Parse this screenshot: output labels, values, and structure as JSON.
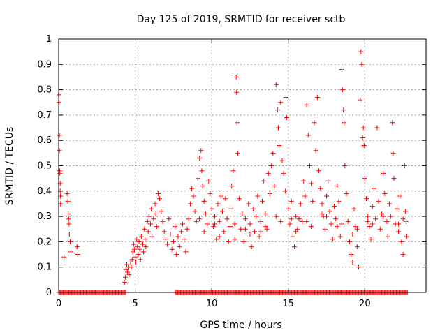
{
  "chart_data": {
    "type": "scatter",
    "title": "Day 125 of 2019, SRMTID for receiver sctb",
    "xlabel": "GPS time / hours",
    "ylabel": "SRMTID / TECUs",
    "xlim": [
      0,
      24
    ],
    "ylim": [
      0,
      1
    ],
    "xticks": [
      0,
      5,
      10,
      15,
      20
    ],
    "xtick_labels": [
      "0",
      "5",
      "10",
      "15",
      "20"
    ],
    "yticks": [
      0,
      0.1,
      0.2,
      0.3,
      0.4,
      0.5,
      0.6,
      0.7,
      0.8,
      0.9,
      1
    ],
    "ytick_labels": [
      "0",
      "0.1",
      "0.2",
      "0.3",
      "0.4",
      "0.5",
      "0.6",
      "0.7",
      "0.8",
      "0.9",
      "1"
    ],
    "grid": true,
    "marker": "+",
    "series": [
      {
        "name": "SRMTID",
        "color": "#ff0000",
        "points": [
          [
            0.02,
            0.78
          ],
          [
            0.03,
            0.75
          ],
          [
            0.05,
            0.62
          ],
          [
            0.05,
            0.56
          ],
          [
            0.07,
            0.48
          ],
          [
            0.08,
            0.47
          ],
          [
            0.1,
            0.43
          ],
          [
            0.1,
            0.4
          ],
          [
            0.12,
            0.38
          ],
          [
            0.12,
            0.35
          ],
          [
            0.35,
            0.14
          ],
          [
            0.55,
            0.39
          ],
          [
            0.6,
            0.36
          ],
          [
            0.62,
            0.31
          ],
          [
            0.65,
            0.29
          ],
          [
            0.68,
            0.27
          ],
          [
            0.7,
            0.23
          ],
          [
            0.75,
            0.2
          ],
          [
            0.8,
            0.16
          ],
          [
            1.2,
            0.18
          ],
          [
            1.25,
            0.15
          ],
          [
            4.3,
            0.04
          ],
          [
            4.35,
            0.06
          ],
          [
            4.4,
            0.09
          ],
          [
            4.45,
            0.11
          ],
          [
            4.5,
            0.08
          ],
          [
            4.55,
            0.1
          ],
          [
            4.6,
            0.07
          ],
          [
            4.7,
            0.12
          ],
          [
            4.75,
            0.1
          ],
          [
            4.8,
            0.13
          ],
          [
            4.85,
            0.16
          ],
          [
            4.9,
            0.19
          ],
          [
            4.95,
            0.17
          ],
          [
            5.0,
            0.14
          ],
          [
            5.05,
            0.12
          ],
          [
            5.1,
            0.21
          ],
          [
            5.15,
            0.18
          ],
          [
            5.2,
            0.15
          ],
          [
            5.25,
            0.2
          ],
          [
            5.3,
            0.17
          ],
          [
            5.35,
            0.13
          ],
          [
            5.4,
            0.22
          ],
          [
            5.5,
            0.19
          ],
          [
            5.55,
            0.16
          ],
          [
            5.6,
            0.25
          ],
          [
            5.65,
            0.21
          ],
          [
            5.7,
            0.18
          ],
          [
            5.8,
            0.28
          ],
          [
            5.85,
            0.24
          ],
          [
            5.9,
            0.3
          ],
          [
            6.0,
            0.27
          ],
          [
            6.05,
            0.33
          ],
          [
            6.1,
            0.22
          ],
          [
            6.2,
            0.29
          ],
          [
            6.3,
            0.35
          ],
          [
            6.35,
            0.31
          ],
          [
            6.4,
            0.26
          ],
          [
            6.5,
            0.39
          ],
          [
            6.6,
            0.37
          ],
          [
            6.7,
            0.32
          ],
          [
            6.8,
            0.28
          ],
          [
            6.9,
            0.24
          ],
          [
            7.0,
            0.21
          ],
          [
            7.1,
            0.19
          ],
          [
            7.2,
            0.29
          ],
          [
            7.3,
            0.23
          ],
          [
            7.4,
            0.17
          ],
          [
            7.5,
            0.2
          ],
          [
            7.6,
            0.26
          ],
          [
            7.7,
            0.15
          ],
          [
            7.8,
            0.22
          ],
          [
            7.9,
            0.18
          ],
          [
            8.0,
            0.24
          ],
          [
            8.1,
            0.27
          ],
          [
            8.2,
            0.21
          ],
          [
            8.3,
            0.16
          ],
          [
            8.4,
            0.25
          ],
          [
            8.5,
            0.29
          ],
          [
            8.6,
            0.35
          ],
          [
            8.7,
            0.41
          ],
          [
            8.8,
            0.38
          ],
          [
            8.9,
            0.32
          ],
          [
            9.0,
            0.28
          ],
          [
            9.1,
            0.45
          ],
          [
            9.2,
            0.53
          ],
          [
            9.3,
            0.56
          ],
          [
            9.35,
            0.48
          ],
          [
            9.4,
            0.42
          ],
          [
            9.5,
            0.36
          ],
          [
            9.6,
            0.31
          ],
          [
            9.7,
            0.27
          ],
          [
            9.8,
            0.44
          ],
          [
            9.9,
            0.39
          ],
          [
            10.0,
            0.33
          ],
          [
            10.1,
            0.26
          ],
          [
            10.2,
            0.3
          ],
          [
            10.3,
            0.21
          ],
          [
            10.4,
            0.35
          ],
          [
            10.5,
            0.28
          ],
          [
            10.6,
            0.38
          ],
          [
            10.7,
            0.32
          ],
          [
            10.8,
            0.24
          ],
          [
            10.9,
            0.37
          ],
          [
            11.0,
            0.29
          ],
          [
            11.1,
            0.2
          ],
          [
            11.2,
            0.33
          ],
          [
            11.3,
            0.42
          ],
          [
            11.4,
            0.48
          ],
          [
            11.5,
            0.27
          ],
          [
            11.6,
            0.85
          ],
          [
            11.62,
            0.79
          ],
          [
            11.65,
            0.67
          ],
          [
            11.7,
            0.55
          ],
          [
            11.8,
            0.37
          ],
          [
            11.9,
            0.25
          ],
          [
            12.0,
            0.31
          ],
          [
            12.1,
            0.2
          ],
          [
            12.2,
            0.29
          ],
          [
            12.3,
            0.23
          ],
          [
            12.4,
            0.35
          ],
          [
            12.5,
            0.27
          ],
          [
            12.6,
            0.18
          ],
          [
            12.7,
            0.33
          ],
          [
            12.8,
            0.24
          ],
          [
            12.9,
            0.3
          ],
          [
            13.0,
            0.38
          ],
          [
            13.1,
            0.22
          ],
          [
            13.2,
            0.28
          ],
          [
            13.3,
            0.36
          ],
          [
            13.4,
            0.44
          ],
          [
            13.5,
            0.31
          ],
          [
            13.6,
            0.25
          ],
          [
            13.7,
            0.47
          ],
          [
            13.8,
            0.39
          ],
          [
            13.9,
            0.5
          ],
          [
            14.0,
            0.55
          ],
          [
            14.1,
            0.42
          ],
          [
            14.2,
            0.82
          ],
          [
            14.3,
            0.72
          ],
          [
            14.35,
            0.65
          ],
          [
            14.4,
            0.58
          ],
          [
            14.5,
            0.75
          ],
          [
            14.6,
            0.52
          ],
          [
            14.7,
            0.47
          ],
          [
            14.8,
            0.4
          ],
          [
            14.85,
            0.77
          ],
          [
            14.9,
            0.69
          ],
          [
            15.0,
            0.33
          ],
          [
            15.1,
            0.27
          ],
          [
            15.2,
            0.36
          ],
          [
            15.3,
            0.22
          ],
          [
            15.4,
            0.18
          ],
          [
            15.5,
            0.3
          ],
          [
            15.6,
            0.25
          ],
          [
            15.7,
            0.29
          ],
          [
            15.8,
            0.35
          ],
          [
            15.9,
            0.28
          ],
          [
            16.0,
            0.44
          ],
          [
            16.1,
            0.38
          ],
          [
            16.2,
            0.74
          ],
          [
            16.3,
            0.62
          ],
          [
            16.4,
            0.5
          ],
          [
            16.5,
            0.43
          ],
          [
            16.6,
            0.36
          ],
          [
            16.7,
            0.67
          ],
          [
            16.8,
            0.56
          ],
          [
            16.9,
            0.77
          ],
          [
            17.0,
            0.48
          ],
          [
            17.1,
            0.41
          ],
          [
            17.2,
            0.35
          ],
          [
            17.3,
            0.3
          ],
          [
            17.4,
            0.25
          ],
          [
            17.5,
            0.38
          ],
          [
            17.6,
            0.44
          ],
          [
            17.7,
            0.32
          ],
          [
            17.8,
            0.27
          ],
          [
            17.9,
            0.21
          ],
          [
            18.0,
            0.34
          ],
          [
            18.1,
            0.29
          ],
          [
            18.2,
            0.42
          ],
          [
            18.3,
            0.36
          ],
          [
            18.4,
            0.22
          ],
          [
            18.5,
            0.88
          ],
          [
            18.55,
            0.8
          ],
          [
            18.6,
            0.72
          ],
          [
            18.65,
            0.67
          ],
          [
            18.7,
            0.5
          ],
          [
            18.8,
            0.39
          ],
          [
            18.9,
            0.28
          ],
          [
            19.0,
            0.2
          ],
          [
            19.1,
            0.15
          ],
          [
            19.2,
            0.12
          ],
          [
            19.3,
            0.33
          ],
          [
            19.4,
            0.26
          ],
          [
            19.5,
            0.18
          ],
          [
            19.6,
            0.1
          ],
          [
            19.7,
            0.76
          ],
          [
            19.75,
            0.95
          ],
          [
            19.8,
            0.9
          ],
          [
            19.85,
            0.61
          ],
          [
            19.9,
            0.65
          ],
          [
            19.95,
            0.58
          ],
          [
            20.0,
            0.45
          ],
          [
            20.1,
            0.37
          ],
          [
            20.2,
            0.3
          ],
          [
            20.3,
            0.26
          ],
          [
            20.4,
            0.21
          ],
          [
            20.5,
            0.34
          ],
          [
            20.6,
            0.41
          ],
          [
            20.7,
            0.29
          ],
          [
            20.8,
            0.65
          ],
          [
            20.9,
            0.36
          ],
          [
            21.0,
            0.25
          ],
          [
            21.1,
            0.31
          ],
          [
            21.2,
            0.47
          ],
          [
            21.3,
            0.39
          ],
          [
            21.4,
            0.28
          ],
          [
            21.5,
            0.22
          ],
          [
            21.6,
            0.35
          ],
          [
            21.7,
            0.3
          ],
          [
            21.8,
            0.67
          ],
          [
            21.85,
            0.55
          ],
          [
            21.9,
            0.45
          ],
          [
            22.0,
            0.27
          ],
          [
            22.1,
            0.33
          ],
          [
            22.2,
            0.24
          ],
          [
            22.3,
            0.38
          ],
          [
            22.4,
            0.2
          ],
          [
            22.5,
            0.15
          ],
          [
            22.6,
            0.5
          ],
          [
            22.65,
            0.32
          ],
          [
            22.7,
            0.28
          ],
          [
            22.75,
            0.22
          ],
          [
            9.5,
            0.24
          ],
          [
            10.5,
            0.22
          ],
          [
            11.5,
            0.21
          ],
          [
            12.5,
            0.23
          ],
          [
            13.5,
            0.26
          ],
          [
            14.5,
            0.28
          ],
          [
            15.5,
            0.24
          ],
          [
            16.5,
            0.26
          ],
          [
            17.5,
            0.3
          ],
          [
            18.5,
            0.27
          ],
          [
            19.5,
            0.25
          ],
          [
            20.5,
            0.27
          ],
          [
            21.5,
            0.28
          ],
          [
            22.5,
            0.29
          ],
          [
            9.2,
            0.29
          ],
          [
            10.2,
            0.27
          ],
          [
            11.2,
            0.26
          ],
          [
            12.2,
            0.25
          ],
          [
            13.2,
            0.24
          ],
          [
            14.2,
            0.3
          ],
          [
            15.2,
            0.29
          ],
          [
            16.2,
            0.28
          ],
          [
            17.2,
            0.31
          ],
          [
            18.2,
            0.26
          ],
          [
            19.2,
            0.23
          ],
          [
            20.2,
            0.28
          ],
          [
            21.2,
            0.3
          ],
          [
            22.2,
            0.27
          ]
        ],
        "zero_band": {
          "value": 0,
          "x_ranges": [
            [
              0.0,
              4.4
            ],
            [
              7.6,
              22.8
            ]
          ]
        }
      }
    ]
  }
}
